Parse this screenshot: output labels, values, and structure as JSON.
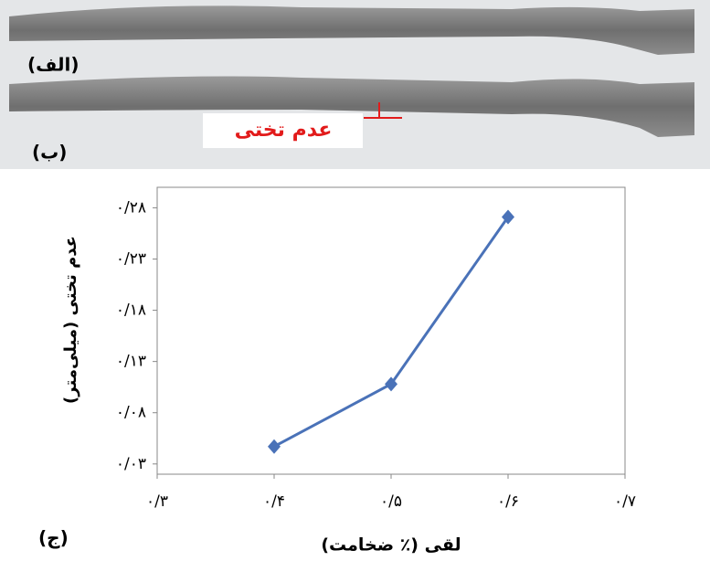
{
  "panels": {
    "a": "(الف)",
    "b": "(ب)",
    "c": "(ج)",
    "annotation": "عدم تختی"
  },
  "chart_data": {
    "type": "line",
    "x_label": "لقی (٪ ضخامت)",
    "y_label": "عدم تختی (میلی‌متر)",
    "x": [
      0.4,
      0.5,
      0.6
    ],
    "series": [
      {
        "color": "#4a72b8",
        "values": [
          0.047,
          0.108,
          0.271
        ]
      }
    ],
    "xlim": [
      0.3,
      0.7
    ],
    "xticks": [
      {
        "value": 0.3,
        "label": "۰/۳"
      },
      {
        "value": 0.4,
        "label": "۰/۴"
      },
      {
        "value": 0.5,
        "label": "۰/۵"
      },
      {
        "value": 0.6,
        "label": "۰/۶"
      },
      {
        "value": 0.7,
        "label": "۰/۷"
      }
    ],
    "ylim": [
      0.02,
      0.3
    ],
    "yticks": [
      {
        "value": 0.03,
        "label": "۰/۰۳"
      },
      {
        "value": 0.08,
        "label": "۰/۰۸"
      },
      {
        "value": 0.13,
        "label": "۰/۱۳"
      },
      {
        "value": 0.18,
        "label": "۰/۱۸"
      },
      {
        "value": 0.23,
        "label": "۰/۲۳"
      },
      {
        "value": 0.28,
        "label": "۰/۲۸"
      }
    ]
  }
}
